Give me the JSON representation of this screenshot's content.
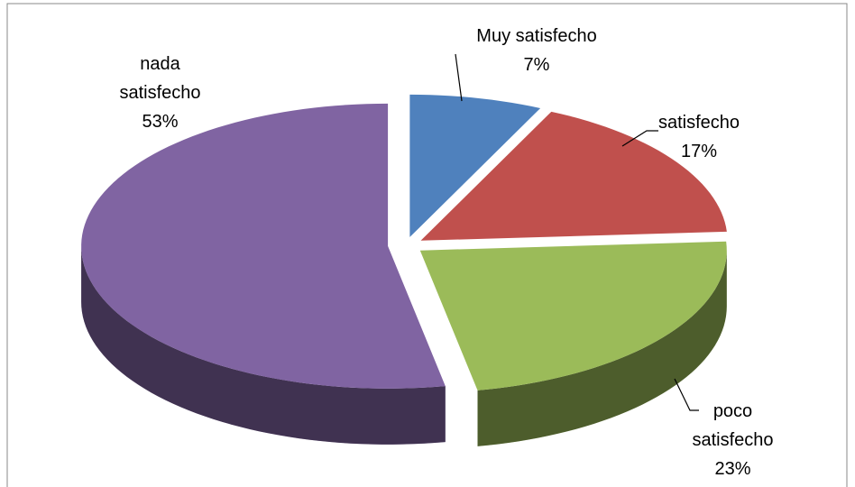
{
  "chart_data": {
    "type": "pie",
    "categories": [
      "Muy satisfecho",
      "satisfecho",
      "poco satisfecho",
      "nada satisfecho"
    ],
    "values": [
      7,
      17,
      23,
      53
    ],
    "value_labels": [
      "7%",
      "17%",
      "23%",
      "53%"
    ],
    "colors": [
      "#4f81bd",
      "#c0504d",
      "#9bbb59",
      "#8064a2"
    ]
  }
}
